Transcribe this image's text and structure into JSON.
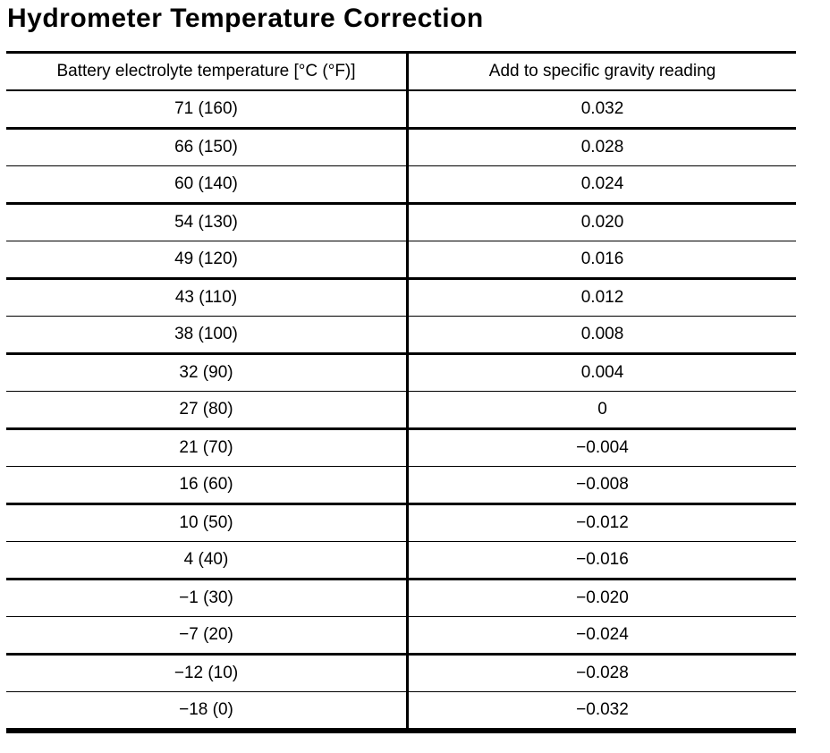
{
  "title": "Hydrometer Temperature Correction",
  "table": {
    "headers": [
      "Battery electrolyte temperature [°C (°F)]",
      "Add to specific gravity reading"
    ],
    "rows": [
      [
        "71 (160)",
        "0.032"
      ],
      [
        "66 (150)",
        "0.028"
      ],
      [
        "60 (140)",
        "0.024"
      ],
      [
        "54 (130)",
        "0.020"
      ],
      [
        "49 (120)",
        "0.016"
      ],
      [
        "43 (110)",
        "0.012"
      ],
      [
        "38 (100)",
        "0.008"
      ],
      [
        "32 (90)",
        "0.004"
      ],
      [
        "27 (80)",
        "0"
      ],
      [
        "21 (70)",
        "−0.004"
      ],
      [
        "16 (60)",
        "−0.008"
      ],
      [
        "10 (50)",
        "−0.012"
      ],
      [
        "4 (40)",
        "−0.016"
      ],
      [
        "−1 (30)",
        "−0.020"
      ],
      [
        "−7 (20)",
        "−0.024"
      ],
      [
        "−12 (10)",
        "−0.028"
      ],
      [
        "−18 (0)",
        "−0.032"
      ]
    ]
  },
  "colors": {
    "ink": "#000000",
    "paper": "#ffffff"
  }
}
